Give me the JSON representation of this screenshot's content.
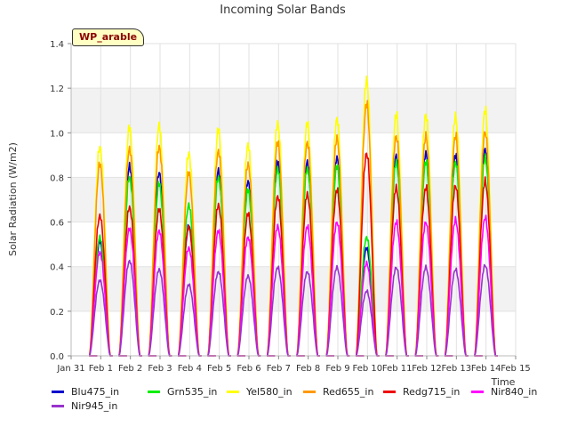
{
  "chart_data": {
    "type": "line",
    "title": "Incoming Solar Bands",
    "xlabel": "Time",
    "ylabel": "Solar Radiation (W/m2)",
    "badge": "WP_arable",
    "ylim": [
      0,
      1.4
    ],
    "yticks": [
      0.0,
      0.2,
      0.4,
      0.6,
      0.8,
      1.0,
      1.2,
      1.4
    ],
    "ytick_labels": [
      "0.0",
      "0.2",
      "0.4",
      "0.6",
      "0.8",
      "1.0",
      "1.2",
      "1.4"
    ],
    "xlim": [
      "Jan 31",
      "Feb 15"
    ],
    "xtick_labels": [
      "Jan 31",
      "Feb 1",
      "Feb 2",
      "Feb 3",
      "Feb 4",
      "Feb 5",
      "Feb 6",
      "Feb 7",
      "Feb 8",
      "Feb 9",
      "Feb 10",
      "Feb 11",
      "Feb 12",
      "Feb 13",
      "Feb 14",
      "Feb 15"
    ],
    "grid": true,
    "band_colors": [
      "#ffffff",
      "#f2f2f2"
    ],
    "days": [
      "Feb 1",
      "Feb 2",
      "Feb 3",
      "Feb 4",
      "Feb 5",
      "Feb 6",
      "Feb 7",
      "Feb 8",
      "Feb 9",
      "Feb 10",
      "Feb 11",
      "Feb 12",
      "Feb 13",
      "Feb 14"
    ],
    "series": [
      {
        "name": "Blu475_in",
        "color": "#0000cc",
        "peaks": [
          0.53,
          0.88,
          0.85,
          0.6,
          0.86,
          0.81,
          0.9,
          0.9,
          0.92,
          0.5,
          0.93,
          0.94,
          0.93,
          0.96
        ]
      },
      {
        "name": "Grn535_in",
        "color": "#00ee00",
        "peaks": [
          0.55,
          0.83,
          0.8,
          0.7,
          0.83,
          0.77,
          0.87,
          0.87,
          0.88,
          0.55,
          0.9,
          0.9,
          0.9,
          0.92
        ]
      },
      {
        "name": "Yel580_in",
        "color": "#ffff00",
        "peaks": [
          0.97,
          1.06,
          1.07,
          0.94,
          1.05,
          0.98,
          1.08,
          1.08,
          1.1,
          1.28,
          1.12,
          1.12,
          1.11,
          1.14
        ]
      },
      {
        "name": "Red655_in",
        "color": "#ff9900",
        "peaks": [
          0.89,
          0.96,
          0.97,
          0.85,
          0.95,
          0.89,
          0.99,
          0.99,
          1.01,
          1.17,
          1.02,
          1.02,
          1.02,
          1.04
        ]
      },
      {
        "name": "Redg715_in",
        "color": "#ee0000",
        "peaks": [
          0.65,
          0.69,
          0.68,
          0.6,
          0.7,
          0.66,
          0.74,
          0.75,
          0.77,
          0.94,
          0.78,
          0.78,
          0.79,
          0.81
        ]
      },
      {
        "name": "Nir840_in",
        "color": "#ff00ff",
        "peaks": [
          0.48,
          0.59,
          0.58,
          0.5,
          0.58,
          0.55,
          0.6,
          0.6,
          0.62,
          0.43,
          0.62,
          0.62,
          0.63,
          0.64
        ]
      },
      {
        "name": "Nir945_in",
        "color": "#9933cc",
        "peaks": [
          0.35,
          0.44,
          0.4,
          0.33,
          0.39,
          0.37,
          0.41,
          0.39,
          0.41,
          0.3,
          0.41,
          0.41,
          0.4,
          0.42
        ]
      }
    ]
  }
}
